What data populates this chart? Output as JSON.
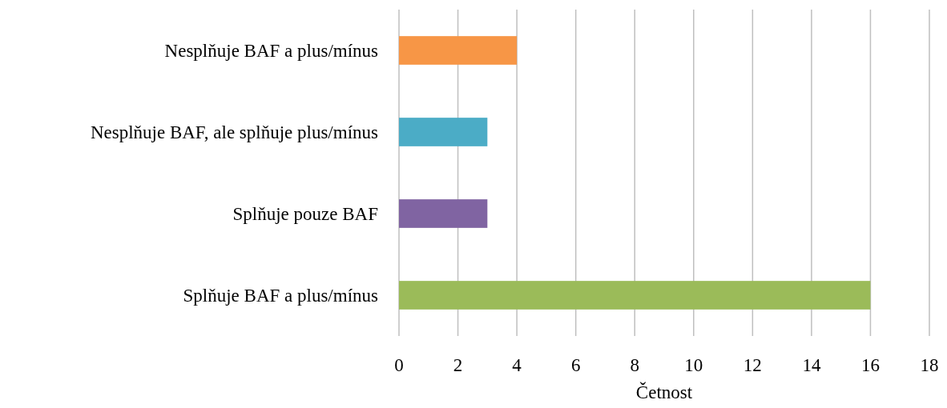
{
  "chart_data": {
    "type": "bar",
    "orientation": "horizontal",
    "xlabel": "Četnost",
    "categories": [
      "Nesplňuje BAF a plus/mínus",
      "Nesplňuje BAF, ale splňuje plus/mínus",
      "Splňuje pouze BAF",
      "Splňuje BAF a plus/mínus"
    ],
    "values": [
      4,
      3,
      3,
      16
    ],
    "colors": [
      "#f79646",
      "#4bacc6",
      "#8064a2",
      "#9bbb59"
    ],
    "xlim": [
      0,
      18
    ],
    "xticks": [
      0,
      2,
      4,
      6,
      8,
      10,
      12,
      14,
      16,
      18
    ],
    "grid": "x"
  }
}
